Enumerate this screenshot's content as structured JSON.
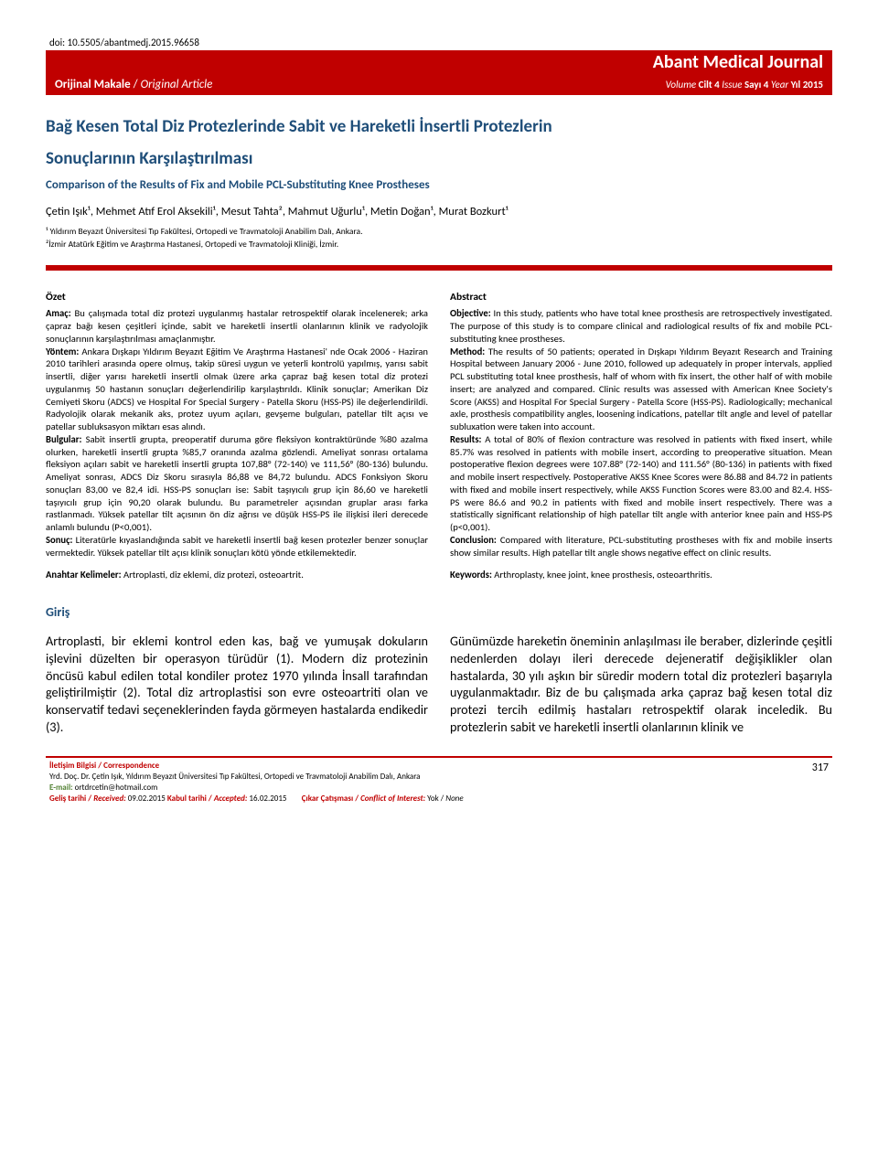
{
  "header": {
    "doi": "doi: 10.5505/abantmedj.2015.96658",
    "journal": "Abant Medical Journal",
    "article_type_bold": "Orijinal Makale",
    "article_type_sep": " / ",
    "article_type_italic": "Original Article",
    "volume_prefix": "Volume ",
    "volume_cilt": "Cilt 4",
    "issue_prefix": " Issue ",
    "sayi": "Sayı 4",
    "year_prefix": " Year ",
    "yil": "Yıl 2015"
  },
  "titles": {
    "tr_line1": "Bağ Kesen Total Diz Protezlerinde Sabit ve Hareketli İnsertli Protezlerin",
    "tr_line2": "Sonuçlarının Karşılaştırılması",
    "en": "Comparison of the Results of Fix and Mobile PCL-Substituting Knee Prostheses"
  },
  "authors": "Çetin Işık¹, Mehmet Atıf Erol Aksekili¹, Mesut Tahta², Mahmut Uğurlu¹, Metin Doğan¹, Murat Bozkurt¹",
  "affiliations": [
    "¹ Yıldırım Beyazıt Üniversitesi Tıp Fakültesi, Ortopedi ve Travmatoloji Anabilim Dalı, Ankara.",
    "²İzmir Atatürk Eğitim ve Araştırma Hastanesi, Ortopedi ve Travmatoloji Kliniği, İzmir."
  ],
  "ozet": {
    "title": "Özet",
    "amac_label": "Amaç:",
    "amac": " Bu çalışmada total diz protezi uygulanmış hastalar retrospektif olarak incelenerek; arka çapraz bağı kesen çeşitleri içinde, sabit ve hareketli insertli olanlarının klinik ve radyolojik sonuçlarının karşılaştırılması amaçlanmıştır.",
    "yontem_label": "Yöntem:",
    "yontem": " Ankara Dışkapı Yıldırım Beyazıt Eğitim Ve Araştırma Hastanesi' nde Ocak 2006 - Haziran 2010 tarihleri arasında opere olmuş, takip süresi uygun ve yeterli kontrolü yapılmış, yarısı sabit insertli, diğer yarısı hareketli insertli olmak üzere arka çapraz bağ kesen total diz protezi uygulanmış 50 hastanın sonuçları değerlendirilip karşılaştırıldı. Klinik sonuçlar; Amerikan Diz Cemiyeti Skoru (ADCS) ve Hospital For Special Surgery - Patella Skoru (HSS-PS) ile değerlendirildi. Radyolojik olarak mekanik aks, protez uyum açıları, gevşeme bulguları, patellar tilt açısı ve patellar subluksasyon miktarı esas alındı.",
    "bulgular_label": "Bulgular:",
    "bulgular": " Sabit insertli grupta, preoperatif duruma göre fleksiyon kontraktüründe %80 azalma olurken, hareketli insertli grupta %85,7 oranında azalma gözlendi. Ameliyat sonrası ortalama fleksiyon açıları sabit ve hareketli insertli grupta 107,88° (72-140) ve 111,56° (80-136) bulundu. Ameliyat sonrası, ADCS Diz Skoru sırasıyla 86,88 ve 84,72 bulundu. ADCS Fonksiyon Skoru sonuçları 83,00 ve 82,4 idi. HSS-PS sonuçları ise: Sabit taşıyıcılı grup için 86,60 ve hareketli taşıyıcılı grup için 90,20 olarak bulundu. Bu parametreler açısından gruplar arası farka rastlanmadı. Yüksek patellar tilt açısının ön diz ağrısı ve düşük HSS-PS ile ilişkisi ileri derecede anlamlı bulundu (P<0,001).",
    "sonuc_label": "Sonuç:",
    "sonuc": " Literatürle kıyaslandığında sabit ve hareketli insertli bağ kesen protezler benzer sonuçlar vermektedir. Yüksek patellar tilt açısı klinik sonuçları kötü yönde etkilemektedir.",
    "keywords_label": "Anahtar Kelimeler:",
    "keywords": " Artroplasti, diz eklemi, diz protezi, osteoartrit."
  },
  "abstract": {
    "title": "Abstract",
    "objective_label": "Objective:",
    "objective": " In this study, patients who have total knee prosthesis are retrospectively investigated. The purpose of this study is to compare clinical and radiological results of fix and mobile PCL-substituting knee prostheses.",
    "method_label": "Method:",
    "method": " The results of 50 patients; operated in Dışkapı Yıldırım Beyazıt Research and Training Hospital between January 2006 - June 2010, followed up adequately in proper intervals, applied PCL substituting total knee prosthesis, half of whom with fix insert, the other half of with mobile insert; are analyzed and compared. Clinic results was assessed with American Knee Society's Score (AKSS) and Hospital For Special Surgery - Patella Score (HSS-PS). Radiologically; mechanical axle, prosthesis compatibility angles, loosening indications, patellar tilt angle and level of patellar subluxation were taken into account.",
    "results_label": "Results:",
    "results": " A total of 80% of flexion contracture was resolved in patients with fixed insert, while 85.7% was resolved in patients with mobile insert, according to preoperative situation. Mean postoperative flexion degrees were 107.88° (72-140) and 111.56° (80-136) in patients with fixed and mobile insert respectively. Postoperative AKSS Knee Scores were 86.88 and 84.72 in patients with fixed and mobile insert respectively, while AKSS Function Scores were 83.00 and 82.4. HSS-PS were 86.6 and 90.2 in patients with fixed and mobile insert respectively. There was a statistically significant relationship of high patellar tilt angle with anterior knee pain and HSS-PS (p<0,001).",
    "conclusion_label": "Conclusion:",
    "conclusion": " Compared with literature, PCL-substituting prostheses with fix and mobile inserts show similar results. High patellar tilt angle shows negative effect on clinic results.",
    "keywords_label": "Keywords:",
    "keywords": " Arthroplasty, knee joint, knee prosthesis, osteoarthritis."
  },
  "giris": {
    "title": "Giriş",
    "left": "Artroplasti, bir eklemi kontrol eden kas, bağ ve yumuşak dokuların işlevini düzelten bir operasyon türüdür (1). Modern diz protezinin öncüsü kabul edilen total kondiler protez 1970 yılında İnsall tarafından geliştirilmiştir (2). Total diz artroplastisi son evre osteoartriti olan ve konservatif tedavi seçeneklerinden fayda görmeyen hastalarda endikedir (3).",
    "right": "Günümüzde hareketin öneminin anlaşılması ile beraber, dizlerinde çeşitli nedenlerden dolayı ileri derecede dejeneratif değişiklikler olan hastalarda, 30 yılı aşkın bir süredir modern total diz protezleri başarıyla uygulanmaktadır. Biz de bu çalışmada arka çapraz bağ kesen total diz protezi tercih edilmiş hastaları retrospektif olarak inceledik. Bu protezlerin sabit ve hareketli insertli olanlarının klinik ve"
  },
  "footer": {
    "corresp_label": "İletişim Bilgisi / Correspondence",
    "corresp_name": "Yrd. Doç. Dr. Çetin Işık, Yıldırım Beyazıt Üniversitesi Tıp Fakültesi, Ortopedi ve Travmatoloji Anabilim Dalı, Ankara",
    "email_label": "E-mail:",
    "email": " ortdrcetin@hotmail.com",
    "received_label": "Geliş tarihi / ",
    "received_ital": "Received:",
    "received_date": "  09.02.2015   ",
    "accepted_label": "Kabul tarihi / ",
    "accepted_ital": "Accepted:",
    "accepted_date": "   16.02.2015",
    "coi_label": "Çıkar Çatışması / ",
    "coi_ital": "Conflict of Interest:",
    "coi_val": " Yok / ",
    "coi_none": "None",
    "page_num": "317"
  }
}
